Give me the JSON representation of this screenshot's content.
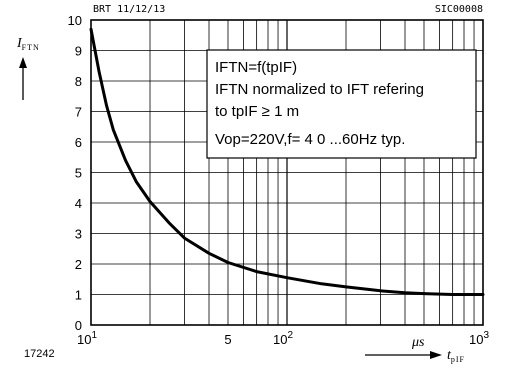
{
  "header": {
    "left": "BRT 11/12/13",
    "right": "SIC00008"
  },
  "figure_number": "17242",
  "annotation": {
    "lines": [
      "IFTN=f(tpIF)",
      "IFTN normalized to IFT refering",
      "to tpIF ≥ 1 m",
      "Vop=220V,f= 4 0 ...60Hz typ."
    ]
  },
  "chart_data": {
    "type": "line",
    "title": "",
    "ylabel": {
      "main": "I",
      "sub": "FTN"
    },
    "xlabel": {
      "main": "t",
      "sub": "pIF"
    },
    "x_unit": "μs",
    "x_scale": "log",
    "xlim": [
      10,
      1000
    ],
    "ylim": [
      0,
      10
    ],
    "y_ticks": [
      "0",
      "1",
      "2",
      "3",
      "4",
      "5",
      "6",
      "7",
      "8",
      "9",
      "10"
    ],
    "x_tick_labels": [
      {
        "value": 10,
        "base": "10",
        "exp": "1"
      },
      {
        "value": 50,
        "base": "5",
        "exp": ""
      },
      {
        "value": 100,
        "base": "10",
        "exp": "2"
      },
      {
        "value": 1000,
        "base": "10",
        "exp": "3"
      }
    ],
    "grid": true,
    "series": [
      {
        "values": [
          [
            10,
            9.7
          ],
          [
            11,
            8.3
          ],
          [
            12,
            7.2
          ],
          [
            13,
            6.4
          ],
          [
            15,
            5.4
          ],
          [
            17,
            4.7
          ],
          [
            20,
            4.05
          ],
          [
            25,
            3.35
          ],
          [
            30,
            2.85
          ],
          [
            40,
            2.35
          ],
          [
            50,
            2.05
          ],
          [
            70,
            1.75
          ],
          [
            100,
            1.55
          ],
          [
            150,
            1.35
          ],
          [
            200,
            1.25
          ],
          [
            300,
            1.12
          ],
          [
            400,
            1.06
          ],
          [
            500,
            1.03
          ],
          [
            700,
            1.0
          ],
          [
            1000,
            1.0
          ]
        ]
      }
    ]
  }
}
